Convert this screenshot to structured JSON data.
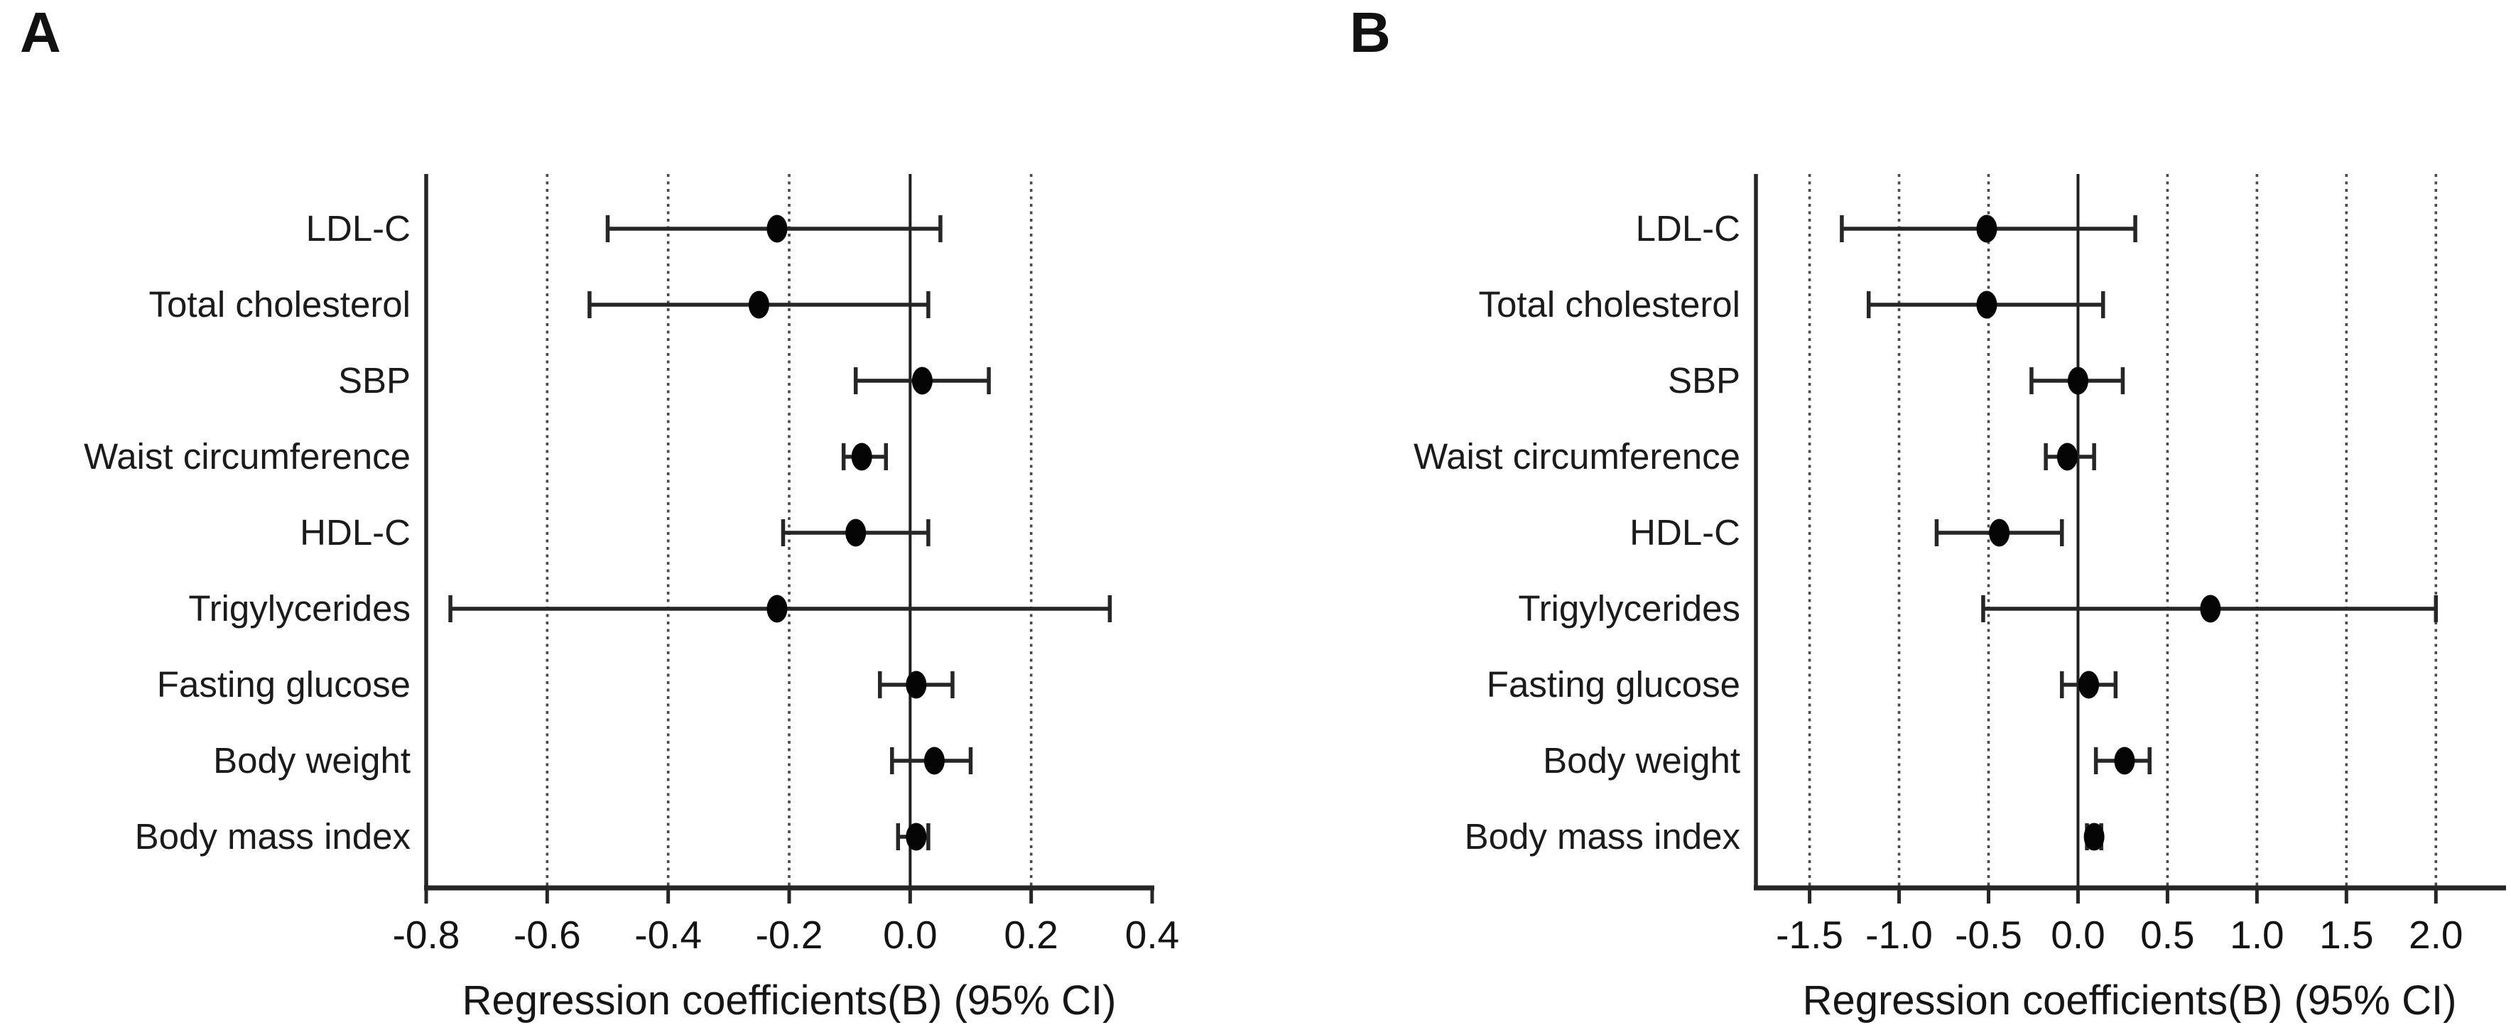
{
  "figure": {
    "kind": "forest plot, two panels",
    "x_axis_title": "Regression coefficients(B) (95% CI)"
  },
  "chart_data": [
    {
      "type": "scatter",
      "subtype": "forest-plot",
      "panel_label": "A",
      "xlabel": "Regression coefficients(B) (95% CI)",
      "categories": [
        "LDL-C",
        "Total cholesterol",
        "SBP",
        "Waist circumference",
        "HDL-C",
        "Trigylycerides",
        "Fasting glucose",
        "Body weight",
        "Body mass index"
      ],
      "series": [
        {
          "name": "Regression coefficient (B) with 95% CI",
          "values": [
            -0.22,
            -0.25,
            0.02,
            -0.08,
            -0.09,
            -0.22,
            0.01,
            0.04,
            0.01
          ],
          "ci_low": [
            -0.5,
            -0.53,
            -0.09,
            -0.11,
            -0.21,
            -0.76,
            -0.05,
            -0.03,
            -0.02
          ],
          "ci_high": [
            0.05,
            0.03,
            0.13,
            -0.04,
            0.03,
            0.33,
            0.07,
            0.1,
            0.03
          ]
        }
      ],
      "xlim": [
        -0.8,
        0.4
      ],
      "x_ticks": [
        -0.8,
        -0.6,
        -0.4,
        -0.2,
        0.0,
        0.2,
        0.4
      ],
      "x_tick_labels": [
        "-0.8",
        "-0.6",
        "-0.4",
        "-0.2",
        "0.0",
        "0.2",
        "0.4"
      ],
      "grid": "vertical-dotted-at-ticks",
      "zero_reference_line": true,
      "legend": "none",
      "marker_color": "#050505",
      "line_color": "#262626"
    },
    {
      "type": "scatter",
      "subtype": "forest-plot",
      "panel_label": "B",
      "xlabel": "Regression coefficients(B) (95% CI)",
      "categories": [
        "LDL-C",
        "Total cholesterol",
        "SBP",
        "Waist circumference",
        "HDL-C",
        "Trigylycerides",
        "Fasting glucose",
        "Body weight",
        "Body mass index"
      ],
      "series": [
        {
          "name": "Regression coefficient (B) with 95% CI",
          "values": [
            -0.51,
            -0.51,
            0.0,
            -0.06,
            -0.44,
            0.74,
            0.06,
            0.26,
            0.09
          ],
          "ci_low": [
            -1.32,
            -1.17,
            -0.26,
            -0.18,
            -0.79,
            -0.53,
            -0.09,
            0.1,
            0.05
          ],
          "ci_high": [
            0.32,
            0.14,
            0.25,
            0.09,
            -0.09,
            2.0,
            0.21,
            0.4,
            0.13
          ]
        }
      ],
      "xlim": [
        -1.8,
        2.38
      ],
      "x_ticks": [
        -1.5,
        -1.0,
        -0.5,
        0.0,
        0.5,
        1.0,
        1.5,
        2.0
      ],
      "x_tick_labels": [
        "-1.5",
        "-1.0",
        "-0.5",
        "0.0",
        "0.5",
        "1.0",
        "1.5",
        "2.0"
      ],
      "grid": "vertical-dotted-at-ticks",
      "zero_reference_line": true,
      "legend": "none",
      "marker_color": "#050505",
      "line_color": "#262626"
    }
  ]
}
